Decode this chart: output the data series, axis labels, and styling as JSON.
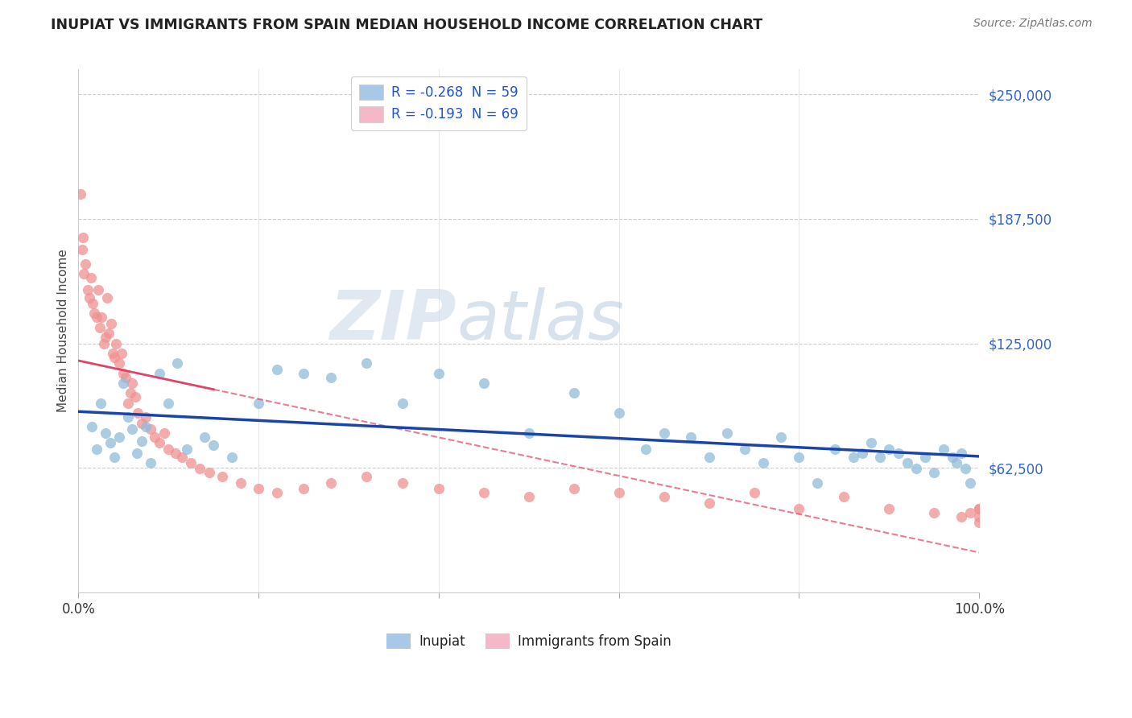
{
  "title": "INUPIAT VS IMMIGRANTS FROM SPAIN MEDIAN HOUSEHOLD INCOME CORRELATION CHART",
  "source_text": "Source: ZipAtlas.com",
  "ylabel": "Median Household Income",
  "xlim": [
    0.0,
    100.0
  ],
  "ylim": [
    0,
    262500
  ],
  "yticks": [
    0,
    62500,
    125000,
    187500,
    250000
  ],
  "ytick_labels": [
    "",
    "$62,500",
    "$125,000",
    "$187,500",
    "$250,000"
  ],
  "legend_entries": [
    {
      "label": "R = -0.268  N = 59",
      "color": "#a8c8e8"
    },
    {
      "label": "R = -0.193  N = 69",
      "color": "#f4b8c8"
    }
  ],
  "bottom_legend": [
    {
      "label": "Inupiat",
      "color": "#a8c8e8"
    },
    {
      "label": "Immigrants from Spain",
      "color": "#f4b8c8"
    }
  ],
  "inupiat_color": "#90bcd8",
  "spain_color": "#f09090",
  "inupiat_trend_color": "#1a44aa",
  "spain_trend_color": "#dd4466",
  "watermark_zip": "ZIP",
  "watermark_atlas": "atlas",
  "inupiat_x": [
    1.5,
    2.0,
    2.5,
    3.0,
    3.5,
    4.0,
    4.5,
    5.0,
    5.5,
    6.0,
    6.5,
    7.0,
    7.5,
    8.0,
    9.0,
    10.0,
    11.0,
    12.0,
    14.0,
    15.0,
    17.0,
    20.0,
    22.0,
    25.0,
    28.0,
    32.0,
    36.0,
    40.0,
    45.0,
    50.0,
    55.0,
    60.0,
    63.0,
    65.0,
    68.0,
    70.0,
    72.0,
    74.0,
    76.0,
    78.0,
    80.0,
    82.0,
    84.0,
    86.0,
    87.0,
    88.0,
    89.0,
    90.0,
    91.0,
    92.0,
    93.0,
    94.0,
    95.0,
    96.0,
    97.0,
    97.5,
    98.0,
    98.5,
    99.0
  ],
  "inupiat_y": [
    83000,
    72000,
    95000,
    80000,
    75000,
    68000,
    78000,
    105000,
    88000,
    82000,
    70000,
    76000,
    83000,
    65000,
    110000,
    95000,
    115000,
    72000,
    78000,
    74000,
    68000,
    95000,
    112000,
    110000,
    108000,
    115000,
    95000,
    110000,
    105000,
    80000,
    100000,
    90000,
    72000,
    80000,
    78000,
    68000,
    80000,
    72000,
    65000,
    78000,
    68000,
    55000,
    72000,
    68000,
    70000,
    75000,
    68000,
    72000,
    70000,
    65000,
    62000,
    68000,
    60000,
    72000,
    68000,
    65000,
    70000,
    62000,
    55000
  ],
  "spain_x": [
    0.2,
    0.4,
    0.5,
    0.6,
    0.8,
    1.0,
    1.2,
    1.4,
    1.6,
    1.8,
    2.0,
    2.2,
    2.4,
    2.6,
    2.8,
    3.0,
    3.2,
    3.4,
    3.6,
    3.8,
    4.0,
    4.2,
    4.5,
    4.8,
    5.0,
    5.2,
    5.5,
    5.8,
    6.0,
    6.3,
    6.6,
    7.0,
    7.5,
    8.0,
    8.5,
    9.0,
    9.5,
    10.0,
    10.8,
    11.5,
    12.5,
    13.5,
    14.5,
    16.0,
    18.0,
    20.0,
    22.0,
    25.0,
    28.0,
    32.0,
    36.0,
    40.0,
    45.0,
    50.0,
    55.0,
    60.0,
    65.0,
    70.0,
    75.0,
    80.0,
    85.0,
    90.0,
    95.0,
    98.0,
    99.0,
    100.0,
    100.0,
    100.0,
    100.0
  ],
  "spain_y": [
    200000,
    172000,
    178000,
    160000,
    165000,
    152000,
    148000,
    158000,
    145000,
    140000,
    138000,
    152000,
    133000,
    138000,
    125000,
    128000,
    148000,
    130000,
    135000,
    120000,
    118000,
    125000,
    115000,
    120000,
    110000,
    108000,
    95000,
    100000,
    105000,
    98000,
    90000,
    85000,
    88000,
    82000,
    78000,
    75000,
    80000,
    72000,
    70000,
    68000,
    65000,
    62000,
    60000,
    58000,
    55000,
    52000,
    50000,
    52000,
    55000,
    58000,
    55000,
    52000,
    50000,
    48000,
    52000,
    50000,
    48000,
    45000,
    50000,
    42000,
    48000,
    42000,
    40000,
    38000,
    40000,
    42000,
    35000,
    38000,
    42000
  ]
}
